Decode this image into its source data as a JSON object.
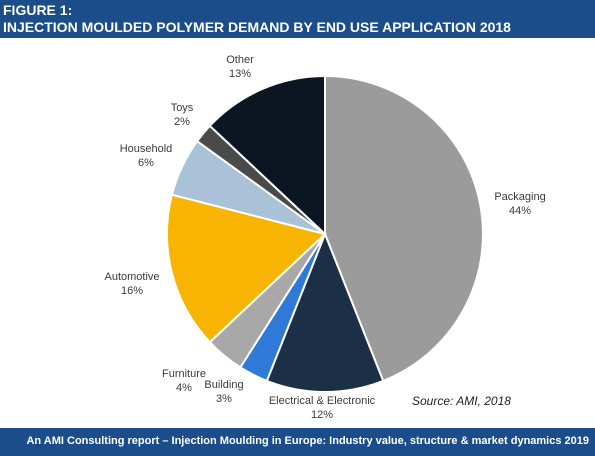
{
  "header": {
    "figure_label": "FIGURE 1:",
    "title": "INJECTION MOULDED POLYMER DEMAND BY END USE APPLICATION 2018"
  },
  "chart_data": {
    "type": "pie",
    "title": "INJECTION MOULDED POLYMER DEMAND BY END USE APPLICATION 2018",
    "slices": [
      {
        "label": "Packaging",
        "value": 44,
        "display": "44%",
        "color": "#9b9b9b"
      },
      {
        "label": "Electrical & Electronic",
        "value": 12,
        "display": "12%",
        "color": "#1b2f47"
      },
      {
        "label": "Building",
        "value": 3,
        "display": "3%",
        "color": "#2e7ad6"
      },
      {
        "label": "Furniture",
        "value": 4,
        "display": "4%",
        "color": "#a8a8a8"
      },
      {
        "label": "Automotive",
        "value": 16,
        "display": "16%",
        "color": "#f7b400"
      },
      {
        "label": "Household",
        "value": 6,
        "display": "6%",
        "color": "#aac2d8"
      },
      {
        "label": "Toys",
        "value": 2,
        "display": "2%",
        "color": "#4a4a4a"
      },
      {
        "label": "Other",
        "value": 13,
        "display": "13%",
        "color": "#0c1622"
      }
    ],
    "source_note": "Source: AMI, 2018"
  },
  "footer": {
    "text": "An AMI Consulting report – Injection Moulding in Europe: Industry value, structure & market dynamics 2019"
  }
}
